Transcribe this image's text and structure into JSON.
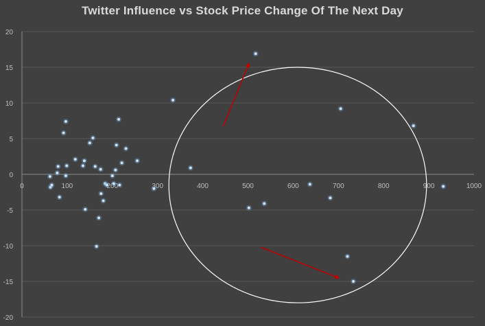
{
  "chart_data": {
    "type": "scatter",
    "title": "Twitter Influence vs Stock Price Change Of The Next Day",
    "xlabel": "",
    "ylabel": "",
    "xlim": [
      0,
      1000
    ],
    "ylim": [
      -20,
      20
    ],
    "x_ticks": [
      0,
      100,
      200,
      300,
      400,
      500,
      600,
      700,
      800,
      900,
      1000
    ],
    "y_ticks": [
      -20,
      -15,
      -10,
      -5,
      0,
      5,
      10,
      15,
      20
    ],
    "grid": "horizontal",
    "legend": "none",
    "series": [
      {
        "color": "#9fc5e8",
        "points": [
          [
            62,
            -0.3
          ],
          [
            63,
            -1.8
          ],
          [
            66,
            -1.5
          ],
          [
            78,
            0.2
          ],
          [
            80,
            1.1
          ],
          [
            83,
            -3.2
          ],
          [
            92,
            5.8
          ],
          [
            97,
            7.4
          ],
          [
            97,
            -0.2
          ],
          [
            99,
            1.2
          ],
          [
            118,
            2.1
          ],
          [
            135,
            1.2
          ],
          [
            138,
            1.9
          ],
          [
            140,
            -4.9
          ],
          [
            150,
            4.4
          ],
          [
            157,
            5.1
          ],
          [
            162,
            1.1
          ],
          [
            165,
            -10.1
          ],
          [
            170,
            -6.1
          ],
          [
            174,
            0.7
          ],
          [
            175,
            -2.7
          ],
          [
            180,
            -3.7
          ],
          [
            184,
            -1.3
          ],
          [
            188,
            -1.5
          ],
          [
            200,
            -0.2
          ],
          [
            203,
            -1.3
          ],
          [
            207,
            0.6
          ],
          [
            209,
            4.1
          ],
          [
            214,
            7.7
          ],
          [
            216,
            -1.5
          ],
          [
            221,
            1.6
          ],
          [
            230,
            3.6
          ],
          [
            255,
            1.9
          ],
          [
            292,
            -2.0
          ],
          [
            334,
            10.4
          ],
          [
            373,
            0.9
          ],
          [
            502,
            -4.7
          ],
          [
            517,
            16.9
          ],
          [
            536,
            -4.1
          ],
          [
            637,
            -1.4
          ],
          [
            682,
            -3.3
          ],
          [
            705,
            9.2
          ],
          [
            720,
            -11.5
          ],
          [
            733,
            -15.0
          ],
          [
            866,
            6.8
          ],
          [
            932,
            -1.7
          ]
        ]
      }
    ],
    "annotations": [
      {
        "type": "ellipse",
        "center": [
          610,
          -1.5
        ],
        "radius_x": 285,
        "radius_y": 16.5,
        "color": "#ffffff"
      },
      {
        "type": "arrow",
        "from": [
          445,
          6.7
        ],
        "to": [
          502,
          15.5
        ],
        "color": "#c00000"
      },
      {
        "type": "arrow",
        "from": [
          528,
          -10.2
        ],
        "to": [
          700,
          -14.5
        ],
        "color": "#c00000"
      }
    ]
  }
}
